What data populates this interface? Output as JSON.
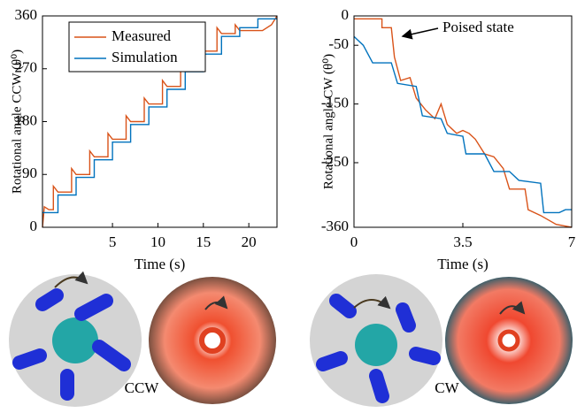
{
  "chart_data": [
    {
      "type": "line",
      "xlabel": "Time (s)",
      "ylabel": "Rotational angle CCW (θ⁰)",
      "xlim": [
        -2.7,
        23.1
      ],
      "ylim": [
        0,
        360
      ],
      "xticks": [
        5,
        10,
        15,
        20
      ],
      "yticks": [
        0,
        90,
        180,
        270,
        360
      ],
      "legend": "upper-left",
      "series": [
        {
          "name": "Measured",
          "color": "#d95319",
          "x": [
            -2.7,
            -2.5,
            -2.0,
            -1.5,
            -1.5,
            -1.0,
            0.5,
            0.5,
            1.0,
            2.5,
            2.5,
            3.0,
            4.5,
            4.5,
            5.0,
            6.5,
            6.5,
            7.0,
            8.5,
            8.5,
            9.0,
            10.5,
            10.5,
            11.0,
            12.5,
            12.5,
            13.0,
            14.5,
            14.5,
            15.0,
            16.5,
            16.5,
            17.0,
            18.5,
            18.5,
            19.0,
            21.5,
            22.5,
            23.1
          ],
          "values": [
            0,
            35,
            30,
            30,
            70,
            60,
            60,
            100,
            90,
            90,
            130,
            120,
            120,
            160,
            150,
            150,
            190,
            180,
            180,
            220,
            210,
            210,
            250,
            240,
            240,
            280,
            270,
            270,
            310,
            300,
            300,
            340,
            330,
            330,
            345,
            335,
            335,
            345,
            360
          ]
        },
        {
          "name": "Simulation",
          "color": "#0072bd",
          "x": [
            -2.7,
            -1.0,
            -1.0,
            1.0,
            1.0,
            3.0,
            3.0,
            5.0,
            5.0,
            7.0,
            7.0,
            9.0,
            9.0,
            11.0,
            11.0,
            13.0,
            13.0,
            15.0,
            15.0,
            17.0,
            17.0,
            19.0,
            19.0,
            21.0,
            21.0,
            23.1
          ],
          "values": [
            25,
            25,
            55,
            55,
            85,
            85,
            115,
            115,
            145,
            145,
            175,
            175,
            205,
            205,
            235,
            235,
            265,
            265,
            295,
            295,
            325,
            325,
            340,
            340,
            355,
            355
          ]
        }
      ]
    },
    {
      "type": "line",
      "xlabel": "Time (s)",
      "ylabel": "Rotational angle CW (θ⁰)",
      "xlim": [
        0,
        7
      ],
      "ylim": [
        -360,
        0
      ],
      "xticks": [
        0,
        3.5,
        7
      ],
      "yticks": [
        -360,
        -250,
        -150,
        -50,
        0
      ],
      "annotation": "Poised state",
      "series": [
        {
          "name": "Measured",
          "color": "#d95319",
          "x": [
            0,
            0.9,
            0.9,
            1.2,
            1.3,
            1.5,
            1.8,
            2.0,
            2.3,
            2.6,
            2.8,
            3.0,
            3.3,
            3.5,
            3.7,
            3.9,
            4.2,
            4.5,
            4.8,
            5.0,
            5.5,
            5.6,
            6.0,
            6.5,
            7.0
          ],
          "values": [
            -5,
            -5,
            -20,
            -20,
            -70,
            -110,
            -105,
            -140,
            -160,
            -175,
            -150,
            -185,
            -200,
            -195,
            -200,
            -210,
            -235,
            -240,
            -260,
            -295,
            -295,
            -330,
            -340,
            -355,
            -360
          ]
        },
        {
          "name": "Simulation",
          "color": "#0072bd",
          "x": [
            0,
            0.3,
            0.6,
            1.2,
            1.4,
            2.0,
            2.2,
            2.8,
            3.0,
            3.5,
            3.6,
            4.2,
            4.5,
            5.0,
            5.3,
            6.0,
            6.1,
            6.6,
            6.8,
            7.0
          ],
          "values": [
            -35,
            -50,
            -80,
            -80,
            -115,
            -120,
            -170,
            -175,
            -200,
            -205,
            -235,
            -235,
            -265,
            -265,
            -280,
            -285,
            -335,
            -335,
            -330,
            -330
          ]
        }
      ]
    }
  ],
  "images": [
    {
      "label": "CCW"
    },
    {
      "label": "CW"
    }
  ]
}
